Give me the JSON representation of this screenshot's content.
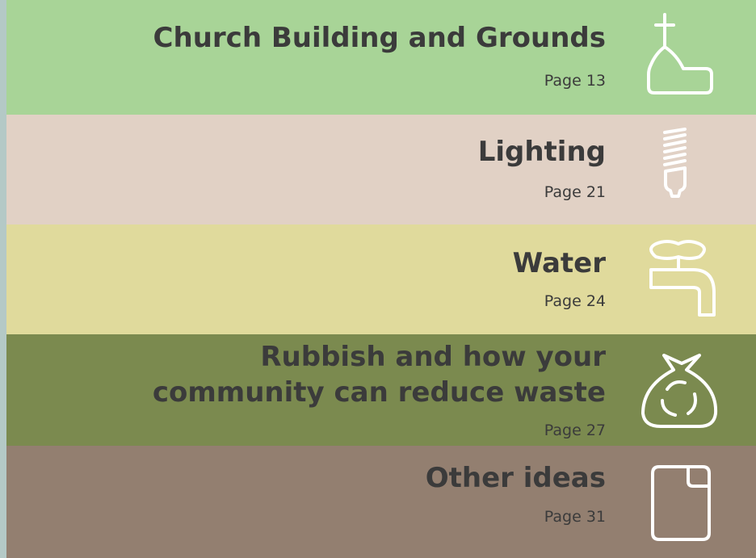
{
  "sections": [
    {
      "title_lines": [
        "Church Building and Grounds"
      ],
      "page": "Page 13"
    },
    {
      "title_lines": [
        "Lighting"
      ],
      "page": "Page 21"
    },
    {
      "title_lines": [
        "Water"
      ],
      "page": "Page 24"
    },
    {
      "title_lines": [
        "Rubbish and how your",
        "community can reduce waste"
      ],
      "page": "Page 27"
    },
    {
      "title_lines": [
        "Other ideas"
      ],
      "page": "Page 31"
    }
  ]
}
